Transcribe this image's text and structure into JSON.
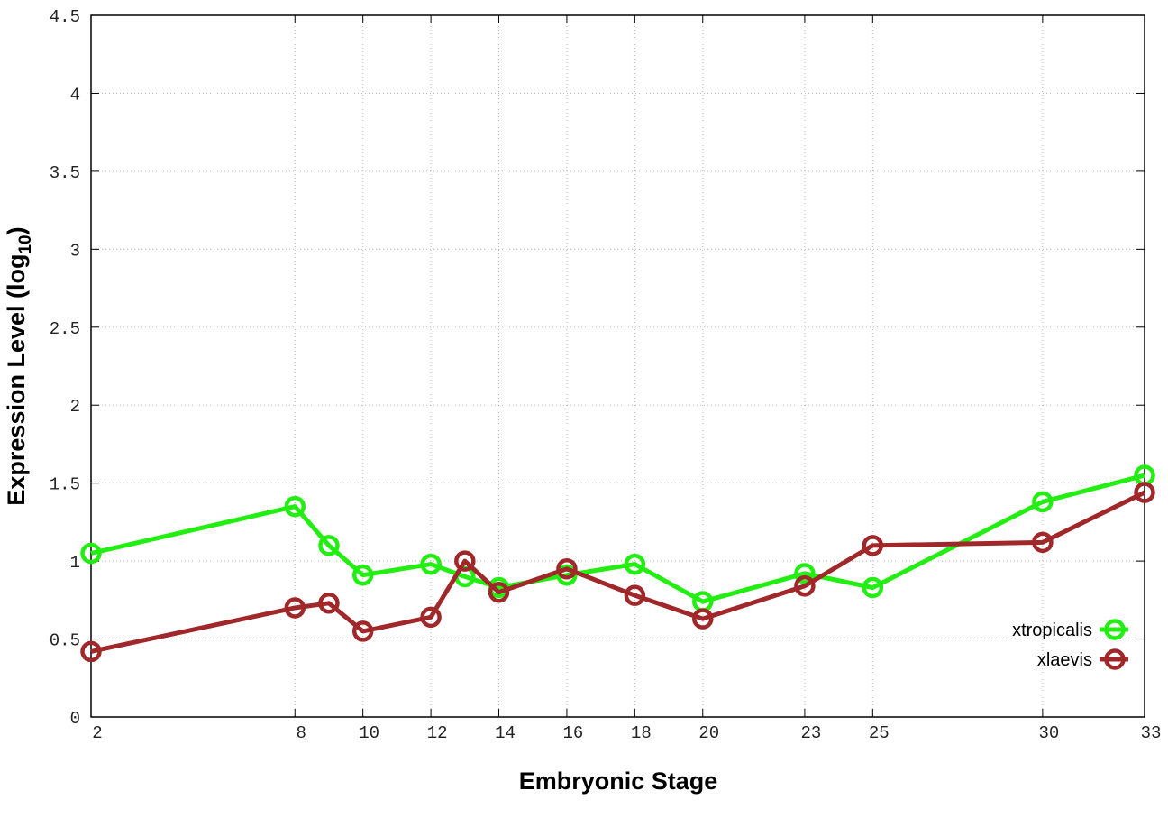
{
  "chart_data": {
    "type": "line",
    "title": "",
    "xlabel": "Embryonic Stage",
    "ylabel": {
      "main": "Expression Level (log",
      "sub": "10",
      "end": ")"
    },
    "xlim": [
      2,
      33
    ],
    "ylim": [
      0,
      4.5
    ],
    "xticks": [
      2,
      8,
      10,
      12,
      14,
      16,
      18,
      20,
      23,
      25,
      30,
      33
    ],
    "yticks": [
      0,
      0.5,
      1,
      1.5,
      2,
      2.5,
      3,
      3.5,
      4,
      4.5
    ],
    "ytick_labels": [
      "0",
      "0.5",
      "1",
      "1.5",
      "2",
      "2.5",
      "3",
      "3.5",
      "4",
      "4.5"
    ],
    "grid": true,
    "legend_position": "bottom-right",
    "x": [
      2,
      8,
      9,
      10,
      12,
      13,
      14,
      16,
      18,
      20,
      23,
      25,
      30,
      33
    ],
    "series": [
      {
        "name": "xtropicalis",
        "color": "#22ee11",
        "values": [
          1.05,
          1.35,
          1.1,
          0.91,
          0.98,
          0.9,
          0.83,
          0.91,
          0.98,
          0.74,
          0.92,
          0.83,
          1.38,
          1.55
        ]
      },
      {
        "name": "xlaevis",
        "color": "#a0282a",
        "values": [
          0.42,
          0.7,
          0.73,
          0.55,
          0.64,
          1.0,
          0.8,
          0.95,
          0.78,
          0.63,
          0.84,
          1.1,
          1.12,
          1.44
        ]
      }
    ]
  }
}
